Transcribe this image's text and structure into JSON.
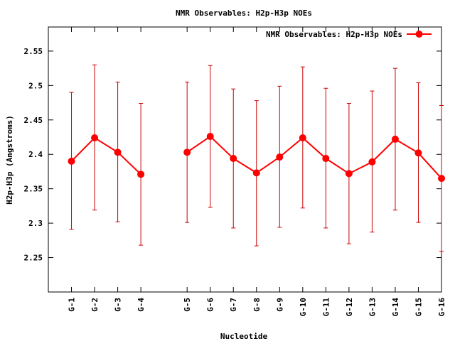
{
  "chart_data": {
    "type": "line",
    "title": "NMR Observables: H2p-H3p NOEs",
    "xlabel": "Nucleotide",
    "ylabel": "H2p-H3p (Angstroms)",
    "ylim": [
      2.2,
      2.585
    ],
    "yticks": [
      "2.25",
      "2.3",
      "2.35",
      "2.4",
      "2.45",
      "2.5",
      "2.55"
    ],
    "grid": false,
    "legend_position": "top-right",
    "series_color": "#ff0000",
    "errorbar_color": "#cc0000",
    "series": [
      {
        "name": "NMR Observables: H2p-H3p NOEs",
        "points": [
          {
            "label": "G-1",
            "x": 1,
            "y": 2.39,
            "low": 2.291,
            "high": 2.49
          },
          {
            "label": "G-2",
            "x": 2,
            "y": 2.424,
            "low": 2.319,
            "high": 2.53
          },
          {
            "label": "G-3",
            "x": 3,
            "y": 2.403,
            "low": 2.302,
            "high": 2.505
          },
          {
            "label": "G-4",
            "x": 4,
            "y": 2.371,
            "low": 2.268,
            "high": 2.474
          },
          {
            "label": "G-5",
            "x": 6,
            "y": 2.403,
            "low": 2.301,
            "high": 2.505
          },
          {
            "label": "G-6",
            "x": 7,
            "y": 2.426,
            "low": 2.323,
            "high": 2.529
          },
          {
            "label": "G-7",
            "x": 8,
            "y": 2.394,
            "low": 2.293,
            "high": 2.495
          },
          {
            "label": "G-8",
            "x": 9,
            "y": 2.373,
            "low": 2.267,
            "high": 2.478
          },
          {
            "label": "G-9",
            "x": 10,
            "y": 2.396,
            "low": 2.294,
            "high": 2.499
          },
          {
            "label": "G-10",
            "x": 11,
            "y": 2.424,
            "low": 2.322,
            "high": 2.527
          },
          {
            "label": "G-11",
            "x": 12,
            "y": 2.394,
            "low": 2.293,
            "high": 2.496
          },
          {
            "label": "G-12",
            "x": 13,
            "y": 2.372,
            "low": 2.27,
            "high": 2.474
          },
          {
            "label": "G-13",
            "x": 14,
            "y": 2.389,
            "low": 2.287,
            "high": 2.492
          },
          {
            "label": "G-14",
            "x": 15,
            "y": 2.422,
            "low": 2.319,
            "high": 2.525
          },
          {
            "label": "G-15",
            "x": 16,
            "y": 2.402,
            "low": 2.301,
            "high": 2.504
          },
          {
            "label": "G-16",
            "x": 17,
            "y": 2.365,
            "low": 2.259,
            "high": 2.471
          }
        ]
      }
    ]
  }
}
